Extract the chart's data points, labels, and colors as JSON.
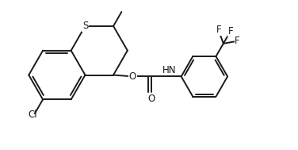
{
  "bg_color": "#ffffff",
  "line_color": "#1a1a1a",
  "line_width": 1.4,
  "font_size": 8.5,
  "fig_width": 3.76,
  "fig_height": 1.89,
  "dpi": 100,
  "xlim": [
    0,
    10
  ],
  "ylim": [
    0,
    5
  ]
}
